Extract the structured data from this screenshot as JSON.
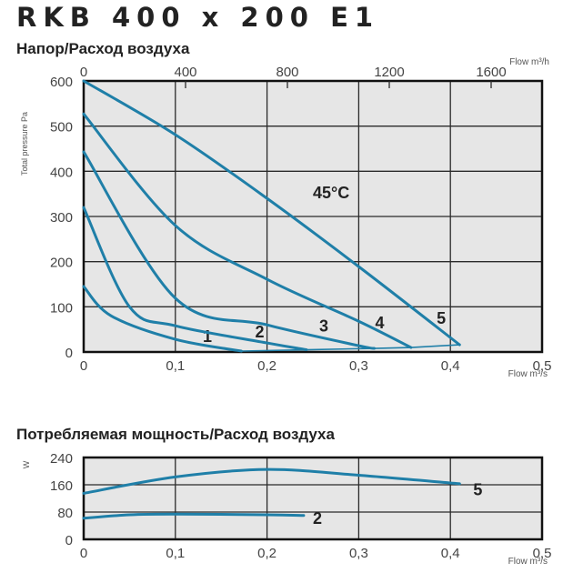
{
  "title": "RKB 400 x 200 E1",
  "chart_data": [
    {
      "type": "line",
      "title": "Напор/Расход воздуха",
      "xlabel": "Flow m³/s",
      "x2label": "Flow m³/h",
      "ylabel": "Total pressure Pa",
      "xlim": [
        0,
        0.5
      ],
      "ylim": [
        0,
        600
      ],
      "x2lim": [
        0,
        1800
      ],
      "xticks": [
        "0",
        "0,1",
        "0,2",
        "0,3",
        "0,4",
        "0,5"
      ],
      "x2ticks": [
        0,
        400,
        800,
        1200,
        1600
      ],
      "yticks": [
        0,
        100,
        200,
        300,
        400,
        500,
        600
      ],
      "grid": true,
      "annotation": {
        "text": "45°C",
        "x": 0.25,
        "y": 340
      },
      "series": [
        {
          "name": "1",
          "x": [
            0,
            0.03,
            0.1,
            0.172
          ],
          "y": [
            145,
            80,
            28,
            2
          ],
          "label_at": [
            0.13,
            22
          ]
        },
        {
          "name": "2",
          "x": [
            0,
            0.05,
            0.1,
            0.2,
            0.243
          ],
          "y": [
            320,
            100,
            58,
            20,
            5
          ],
          "label_at": [
            0.187,
            32
          ]
        },
        {
          "name": "3",
          "x": [
            0,
            0.1,
            0.2,
            0.3,
            0.317
          ],
          "y": [
            443,
            119,
            60,
            14,
            8
          ],
          "label_at": [
            0.257,
            45
          ]
        },
        {
          "name": "4",
          "x": [
            0,
            0.1,
            0.2,
            0.3,
            0.357
          ],
          "y": [
            527,
            280,
            161,
            68,
            10
          ],
          "label_at": [
            0.318,
            52
          ]
        },
        {
          "name": "5",
          "x": [
            0,
            0.1,
            0.2,
            0.3,
            0.41
          ],
          "y": [
            600,
            481,
            340,
            189,
            16
          ],
          "label_at": [
            0.385,
            62
          ]
        }
      ],
      "end_line": {
        "x": [
          0.172,
          0.243,
          0.317,
          0.357,
          0.41
        ],
        "y": [
          2,
          5,
          8,
          10,
          16
        ]
      }
    },
    {
      "type": "line",
      "title": "Потребляемая мощность/Расход воздуха",
      "xlabel": "Flow m³/s",
      "ylabel": "W",
      "xlim": [
        0,
        0.5
      ],
      "ylim": [
        0,
        240
      ],
      "xticks": [
        "0",
        "0,1",
        "0,2",
        "0,3",
        "0,4",
        "0,5"
      ],
      "yticks": [
        0,
        80,
        160,
        240
      ],
      "grid": true,
      "series": [
        {
          "name": "5",
          "x": [
            0,
            0.1,
            0.2,
            0.3,
            0.41
          ],
          "y": [
            135,
            183,
            205,
            188,
            163
          ],
          "label_at": [
            0.425,
            130
          ]
        },
        {
          "name": "2",
          "x": [
            0,
            0.05,
            0.1,
            0.2,
            0.24
          ],
          "y": [
            62,
            72,
            74,
            72,
            70
          ],
          "label_at": [
            0.25,
            45
          ]
        }
      ]
    }
  ],
  "colors": {
    "curve": "#1f7fa8",
    "plot_bg": "#e6e6e6",
    "grid": "#2a2a2a"
  }
}
